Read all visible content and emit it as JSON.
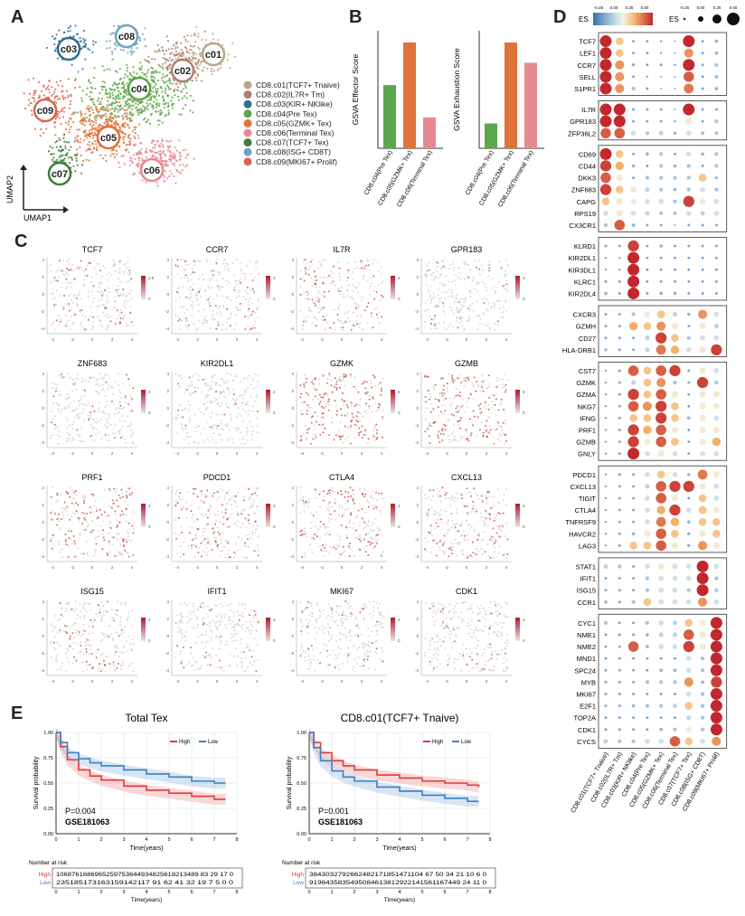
{
  "panel_letters": {
    "a": "A",
    "b": "B",
    "c": "C",
    "d": "D",
    "e": "E"
  },
  "umap": {
    "xlabel": "UMAP1",
    "ylabel": "UMAP2",
    "clusters": [
      {
        "id": "c01",
        "label": "CD8.c01(TCF7+ Tnaive)",
        "color": "#b8a787"
      },
      {
        "id": "c02",
        "label": "CD8.c02(IL7R+ Tm)",
        "color": "#b07e6f"
      },
      {
        "id": "c03",
        "label": "CD8.c03(KIR+ NKlike)",
        "color": "#2f6e8d"
      },
      {
        "id": "c04",
        "label": "CD8.c04(Pre Tex)",
        "color": "#5aa84a"
      },
      {
        "id": "c05",
        "label": "CD8.c05(GZMK+ Tex)",
        "color": "#e0733a"
      },
      {
        "id": "c06",
        "label": "CD8.c06(Terminal Tex)",
        "color": "#e58a91"
      },
      {
        "id": "c07",
        "label": "CD8.c07(TCF7+ Tex)",
        "color": "#3f7d3c"
      },
      {
        "id": "c08",
        "label": "CD8.c08(ISG+ CD8T)",
        "color": "#6fa3c3"
      },
      {
        "id": "c09",
        "label": "CD8.c09(MKI67+ Prolif)",
        "color": "#d9654f"
      }
    ]
  },
  "chart_data": [
    {
      "type": "bar",
      "ylabel": "GSVA  Effector Score",
      "categories": [
        "CD8.c04(Pre Tex)",
        "CD8.c05(GZMK+ Tex)",
        "CD8.c06(Terminal Tex)"
      ],
      "values": [
        0.43,
        0.72,
        0.21
      ],
      "ylim": [
        0,
        0.8
      ],
      "colors": [
        "#5aa84a",
        "#e0733a",
        "#e58a91"
      ]
    },
    {
      "type": "bar",
      "ylabel": "GSVA Exhaustion Score",
      "categories": [
        "CD8.c04(Pre Tex)",
        "CD8.c05(GZMK+ Tex)",
        "CD8.c06(Terminal Tex)"
      ],
      "values": [
        0.38,
        1.62,
        1.31
      ],
      "ylim": [
        0,
        1.8
      ],
      "colors": [
        "#5aa84a",
        "#e0733a",
        "#e58a91"
      ]
    },
    {
      "type": "heatmap",
      "title": "Feature plots",
      "genes": [
        "TCF7",
        "CCR7",
        "IL7R",
        "GPR183",
        "ZNF683",
        "KIR2DL1",
        "GZMK",
        "GZMB",
        "PRF1",
        "PDCD1",
        "CTLA4",
        "CXCL13",
        "ISG15",
        "IFIT1",
        "MKI67",
        "CDK1"
      ],
      "intensity": [
        0.25,
        0.22,
        0.35,
        0.2,
        0.18,
        0.2,
        0.85,
        0.85,
        0.75,
        0.55,
        0.55,
        0.55,
        0.3,
        0.2,
        0.25,
        0.25
      ],
      "legend_max": [
        2.5,
        3,
        4,
        3,
        3,
        4,
        4,
        6,
        4,
        4,
        4,
        6,
        4,
        4,
        4,
        3
      ],
      "xticks": [
        "-4",
        "-2",
        "0",
        "2",
        "4",
        "6"
      ],
      "yticks": [
        "-4",
        "-2",
        "0",
        "2",
        "4"
      ]
    },
    {
      "type": "scatter",
      "title": "Dot plot",
      "legend_es_label": "ES",
      "colorbar_ticks": [
        "-0.25",
        "0.00",
        "0.25",
        "0.50"
      ],
      "size_ticks": [
        "-0.25",
        "0.00",
        "0.25",
        "0.50"
      ],
      "clusters": [
        "CD8.c01(TCF7+ Tnaive)",
        "CD8.c02(IL7R+ Tm)",
        "CD8.c03(KIR+ NKlike)",
        "CD8.c04(Pre Tex)",
        "CD8.c05(GZMK+ Tex)",
        "CD8.c06(Terminal Tex)",
        "CD8.c07(TCF7+ Tex)",
        "CD8.c08(ISG+ CD8T)",
        "CD8.c09(MKI67+ Prolif)"
      ],
      "groups": [
        {
          "genes": [
            "TCF7",
            "LEF1",
            "CCR7",
            "SELL",
            "S1PR1"
          ],
          "values": [
            [
              0.6,
              0.3,
              -0.1,
              -0.1,
              -0.15,
              -0.2,
              0.6,
              -0.1,
              -0.05
            ],
            [
              0.6,
              0.3,
              -0.1,
              -0.1,
              -0.15,
              -0.2,
              0.4,
              -0.1,
              -0.05
            ],
            [
              0.6,
              0.4,
              -0.05,
              -0.1,
              -0.1,
              -0.15,
              0.6,
              -0.1,
              0.0
            ],
            [
              0.6,
              0.4,
              -0.1,
              -0.15,
              -0.2,
              -0.2,
              0.5,
              -0.1,
              -0.05
            ],
            [
              0.6,
              0.4,
              0.0,
              -0.1,
              -0.2,
              -0.2,
              0.45,
              -0.1,
              -0.05
            ]
          ]
        },
        {
          "genes": [
            "IL7R",
            "GPR183",
            "ZFP36L2"
          ],
          "values": [
            [
              0.6,
              0.6,
              -0.1,
              -0.1,
              -0.1,
              -0.2,
              0.6,
              -0.1,
              -0.1
            ],
            [
              0.6,
              0.6,
              -0.1,
              -0.1,
              -0.1,
              -0.15,
              0.2,
              -0.1,
              0.0
            ],
            [
              0.5,
              0.5,
              0.1,
              0.0,
              0.05,
              -0.05,
              0.1,
              0.0,
              0.0
            ]
          ]
        },
        {
          "genes": [
            "CD69",
            "CD44",
            "DKK3",
            "ZNF683",
            "CAPG",
            "RPS19",
            "CX3CR1"
          ],
          "values": [
            [
              0.6,
              0.3,
              -0.1,
              -0.05,
              0.0,
              -0.1,
              0.1,
              -0.05,
              0.0
            ],
            [
              0.55,
              0.35,
              -0.05,
              -0.1,
              0.0,
              -0.05,
              0.0,
              -0.1,
              0.0
            ],
            [
              0.5,
              0.2,
              -0.1,
              0.0,
              0.0,
              0.0,
              0.0,
              0.3,
              -0.1
            ],
            [
              0.55,
              0.3,
              0.2,
              0.05,
              0.0,
              -0.05,
              0.0,
              0.1,
              0.0
            ],
            [
              0.3,
              0.2,
              0.15,
              0.1,
              0.1,
              0.0,
              0.55,
              0.2,
              0.1
            ],
            [
              0.1,
              0.2,
              0.1,
              0.05,
              0.0,
              0.0,
              0.1,
              0.05,
              0.1
            ],
            [
              0.0,
              0.5,
              -0.05,
              -0.1,
              -0.1,
              -0.2,
              -0.1,
              -0.1,
              -0.1
            ]
          ]
        },
        {
          "genes": [
            "KLRD1",
            "KIR2DL1",
            "KIR3DL1",
            "KLRC1",
            "KIR2DL4"
          ],
          "values": [
            [
              -0.1,
              -0.1,
              0.55,
              -0.1,
              -0.05,
              -0.1,
              -0.1,
              -0.1,
              -0.1
            ],
            [
              -0.15,
              -0.15,
              0.6,
              -0.1,
              -0.1,
              -0.1,
              -0.1,
              -0.1,
              -0.1
            ],
            [
              -0.15,
              -0.15,
              0.6,
              -0.1,
              -0.1,
              -0.1,
              -0.1,
              -0.1,
              -0.1
            ],
            [
              -0.1,
              -0.1,
              0.6,
              -0.1,
              -0.1,
              -0.1,
              -0.1,
              -0.1,
              -0.1
            ],
            [
              -0.05,
              -0.1,
              0.6,
              -0.1,
              -0.05,
              -0.05,
              -0.1,
              -0.1,
              -0.1
            ]
          ]
        },
        {
          "genes": [
            "CXCR3",
            "GZMH",
            "CD27",
            "HLA-DRB1"
          ],
          "values": [
            [
              -0.1,
              -0.1,
              0.0,
              0.15,
              0.3,
              0.05,
              -0.05,
              0.4,
              0.1
            ],
            [
              -0.1,
              -0.1,
              0.35,
              0.3,
              0.4,
              0.2,
              -0.1,
              0.2,
              0.05
            ],
            [
              -0.1,
              -0.1,
              -0.1,
              0.05,
              0.55,
              0.3,
              0.0,
              0.1,
              0.1
            ],
            [
              -0.1,
              -0.1,
              -0.1,
              0.05,
              0.45,
              0.35,
              0.1,
              0.2,
              0.55
            ]
          ]
        },
        {
          "genes": [
            "CST7",
            "GZMK",
            "GZMA",
            "NKG7",
            "IFNG",
            "PRF1",
            "GZMB",
            "GNLY"
          ],
          "values": [
            [
              -0.15,
              -0.1,
              0.5,
              0.3,
              0.5,
              0.55,
              -0.1,
              0.2,
              0.1
            ],
            [
              -0.15,
              -0.1,
              0.05,
              0.3,
              0.4,
              0.0,
              -0.1,
              0.55,
              0.0
            ],
            [
              -0.15,
              -0.1,
              0.55,
              0.3,
              0.5,
              0.2,
              -0.1,
              0.2,
              0.2
            ],
            [
              -0.15,
              -0.1,
              0.5,
              0.4,
              0.55,
              0.3,
              -0.1,
              0.2,
              0.2
            ],
            [
              -0.15,
              -0.1,
              0.3,
              0.3,
              0.55,
              0.3,
              0.0,
              0.2,
              0.1
            ],
            [
              -0.15,
              -0.1,
              0.55,
              0.35,
              0.5,
              0.2,
              -0.1,
              0.2,
              0.2
            ],
            [
              -0.15,
              -0.1,
              0.55,
              0.2,
              0.5,
              0.3,
              -0.1,
              0.2,
              0.35
            ],
            [
              -0.15,
              -0.1,
              0.6,
              0.1,
              0.2,
              0.1,
              -0.1,
              0.1,
              0.1
            ]
          ]
        },
        {
          "genes": [
            "PDCD1",
            "CXCL13",
            "TIGIT",
            "CTLA4",
            "TNFRSF9",
            "HAVCR2",
            "LAG3"
          ],
          "values": [
            [
              -0.15,
              -0.1,
              -0.1,
              0.1,
              0.3,
              0.1,
              -0.05,
              0.45,
              0.2
            ],
            [
              -0.15,
              -0.1,
              -0.1,
              0.05,
              0.5,
              0.55,
              0.55,
              0.2,
              0.1
            ],
            [
              -0.15,
              -0.1,
              -0.1,
              0.1,
              0.5,
              0.2,
              -0.1,
              0.3,
              0.1
            ],
            [
              -0.15,
              -0.1,
              -0.1,
              0.1,
              0.35,
              0.55,
              0.1,
              0.3,
              0.2
            ],
            [
              -0.15,
              -0.1,
              -0.1,
              0.1,
              0.45,
              0.35,
              -0.05,
              0.3,
              0.3
            ],
            [
              -0.15,
              -0.1,
              -0.05,
              0.2,
              0.5,
              0.3,
              -0.05,
              0.2,
              0.3
            ],
            [
              -0.15,
              -0.1,
              0.3,
              0.3,
              0.5,
              0.2,
              -0.05,
              0.4,
              0.2
            ]
          ]
        },
        {
          "genes": [
            "STAT1",
            "IFIT1",
            "ISG15",
            "CCR1"
          ],
          "values": [
            [
              0.05,
              0.0,
              -0.1,
              0.1,
              0.2,
              0.1,
              0.1,
              0.6,
              0.1
            ],
            [
              -0.1,
              -0.1,
              -0.1,
              0.0,
              0.1,
              0.1,
              0.1,
              0.6,
              0.0
            ],
            [
              -0.1,
              -0.1,
              -0.1,
              0.0,
              0.1,
              0.1,
              0.0,
              0.6,
              0.0
            ],
            [
              0.0,
              -0.1,
              0.0,
              0.3,
              0.1,
              0.1,
              0.1,
              0.4,
              0.1
            ]
          ]
        },
        {
          "genes": [
            "CYC1",
            "NME1",
            "NME2",
            "MND1",
            "SPC24",
            "MYB",
            "MKI67",
            "E2F1",
            "TOP2A",
            "CDK1",
            "CYCS"
          ],
          "values": [
            [
              0.0,
              -0.1,
              -0.1,
              0.0,
              0.1,
              0.05,
              0.3,
              0.2,
              0.6
            ],
            [
              -0.1,
              -0.1,
              -0.1,
              -0.05,
              0.05,
              0.05,
              0.5,
              0.2,
              0.6
            ],
            [
              -0.1,
              -0.1,
              0.5,
              -0.05,
              0.1,
              0.1,
              0.55,
              0.2,
              0.6
            ],
            [
              -0.1,
              -0.1,
              -0.1,
              -0.1,
              -0.1,
              -0.1,
              0.1,
              0.0,
              0.6
            ],
            [
              -0.1,
              -0.1,
              -0.1,
              -0.1,
              -0.05,
              -0.05,
              0.1,
              0.0,
              0.6
            ],
            [
              -0.1,
              -0.1,
              -0.1,
              0.0,
              0.0,
              0.0,
              0.4,
              -0.05,
              0.55
            ],
            [
              -0.1,
              -0.1,
              -0.1,
              -0.1,
              -0.1,
              -0.1,
              0.1,
              0.0,
              0.6
            ],
            [
              -0.1,
              -0.1,
              -0.05,
              0.0,
              0.0,
              0.05,
              0.3,
              0.0,
              0.6
            ],
            [
              -0.1,
              -0.1,
              -0.1,
              -0.1,
              -0.1,
              -0.1,
              0.05,
              0.0,
              0.6
            ],
            [
              -0.1,
              -0.1,
              -0.1,
              -0.1,
              -0.05,
              0.0,
              0.15,
              0.0,
              0.6
            ],
            [
              0.05,
              0.0,
              0.0,
              0.1,
              0.1,
              0.5,
              0.3,
              0.1,
              0.4
            ]
          ]
        }
      ]
    },
    {
      "type": "line",
      "title": "Total Tex",
      "legend": [
        "High",
        "Low"
      ],
      "xlabel": "Time(years)",
      "ylabel": "Survival probability",
      "pvalue": "P=0.004",
      "dataset": "GSE181063",
      "xlim": [
        0,
        8
      ],
      "ylim": [
        0,
        1
      ],
      "x": [
        0,
        0.2,
        0.5,
        1,
        1.5,
        2,
        3,
        4,
        5,
        6,
        7,
        7.5
      ],
      "series": [
        {
          "name": "High",
          "color": "#e03a3a",
          "values": [
            1.0,
            0.86,
            0.73,
            0.63,
            0.57,
            0.53,
            0.47,
            0.43,
            0.4,
            0.37,
            0.34,
            0.34
          ]
        },
        {
          "name": "Low",
          "color": "#3b7fc4",
          "values": [
            1.0,
            0.9,
            0.8,
            0.74,
            0.7,
            0.67,
            0.63,
            0.59,
            0.56,
            0.52,
            0.5,
            0.5
          ]
        }
      ],
      "risk_label": "Number at risk",
      "risk_high": "1068761686965259753644934825618213489 83 29 17 0",
      "risk_low": "235185173163159142117 91 62 41 32 19 7 5 0 0",
      "risk_xticks": [
        "0",
        "1",
        "2",
        "3",
        "4",
        "5",
        "6",
        "7",
        "8"
      ]
    },
    {
      "type": "line",
      "title": "CD8.c01(TCF7+ Tnaive)",
      "legend": [
        "High",
        "Low"
      ],
      "xlabel": "Time(years)",
      "ylabel": "Survival probability",
      "pvalue": "P=0.001",
      "dataset": "GSE181063",
      "xlim": [
        0,
        8
      ],
      "ylim": [
        0,
        1
      ],
      "x": [
        0,
        0.2,
        0.5,
        1,
        1.5,
        2,
        3,
        4,
        5,
        6,
        7,
        7.5
      ],
      "series": [
        {
          "name": "High",
          "color": "#e03a3a",
          "values": [
            1.0,
            0.9,
            0.8,
            0.72,
            0.67,
            0.63,
            0.58,
            0.55,
            0.52,
            0.5,
            0.48,
            0.46
          ]
        },
        {
          "name": "Low",
          "color": "#3b7fc4",
          "values": [
            1.0,
            0.85,
            0.72,
            0.62,
            0.56,
            0.52,
            0.46,
            0.42,
            0.38,
            0.35,
            0.32,
            0.32
          ]
        }
      ],
      "risk_label": "Number at risk",
      "risk_high": "3843032792662482171851471104 67 50 34 21 10 6 0",
      "risk_low": "9196435835495084613812922141561167449 24 11 0",
      "risk_xticks": [
        "0",
        "1",
        "2",
        "3",
        "4",
        "5",
        "6",
        "7",
        "8"
      ]
    }
  ]
}
